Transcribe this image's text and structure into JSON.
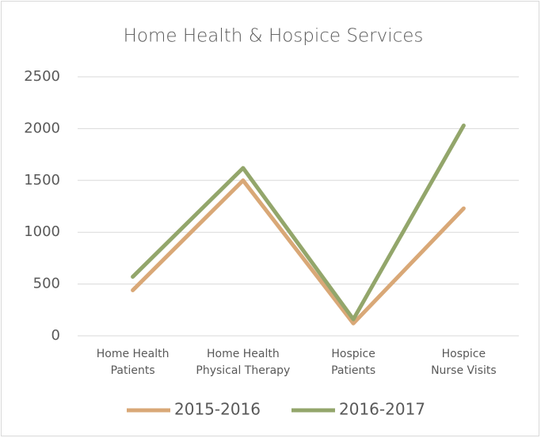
{
  "chart_data": {
    "type": "line",
    "title": "Home Health & Hospice Services",
    "categories": [
      "Home Health\nPatients",
      "Home Health\nPhysical Therapy",
      "Hospice\nPatients",
      "Hospice\nNurse Visits"
    ],
    "series": [
      {
        "name": "2015-2016",
        "color": "#d9a877",
        "values": [
          440,
          1500,
          120,
          1230
        ]
      },
      {
        "name": "2016-2017",
        "color": "#93a66b",
        "values": [
          570,
          1620,
          160,
          2030
        ]
      }
    ],
    "ylim": [
      0,
      2500
    ],
    "yticks": [
      0,
      500,
      1000,
      1500,
      2000,
      2500
    ],
    "grid": true,
    "legend": "bottom"
  }
}
